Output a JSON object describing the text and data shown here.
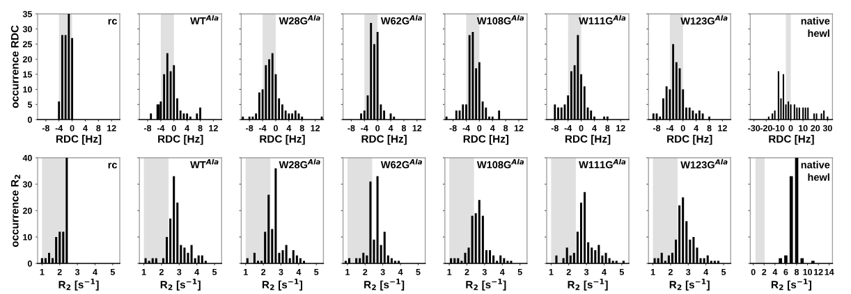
{
  "chart_data": [
    {
      "type": "bar",
      "title": "rc",
      "ylabel": "occurrence RDC",
      "xlabel": "RDC [Hz]",
      "x": [
        -4,
        -3,
        -2,
        -1,
        0
      ],
      "values": [
        6,
        28,
        28,
        35,
        27
      ],
      "color": "#000000",
      "xlim": [
        -10.5,
        14.5
      ],
      "xticks": [
        -8,
        -4,
        0,
        4,
        8,
        12
      ],
      "ylim": [
        0,
        35
      ],
      "yticks": [
        0,
        5,
        10,
        15,
        20,
        25,
        30,
        35
      ],
      "bands": [
        {
          "axis": "x",
          "from": -4,
          "to": 0,
          "color": "#e0e0e0"
        }
      ]
    },
    {
      "type": "bar",
      "title": "WT$^{Ala}$",
      "xlabel": "RDC [Hz]",
      "x": [
        -7,
        -5,
        -4.6,
        -4,
        -3,
        -2,
        -1,
        0,
        1,
        2,
        3,
        4,
        5,
        7,
        8
      ],
      "values": [
        2,
        5,
        5,
        6,
        15,
        22,
        16,
        18,
        7,
        3,
        2,
        2,
        1,
        2,
        4
      ],
      "color": "#000000",
      "xlim": [
        -10.5,
        14.5
      ],
      "xticks": [
        -8,
        -4,
        0,
        4,
        8,
        12
      ],
      "ylim": [
        0,
        35
      ],
      "yticks": [
        {
          "value": 0,
          "label": null
        },
        {
          "value": 5,
          "label": null
        },
        {
          "value": 10,
          "label": null
        },
        {
          "value": 15,
          "label": null
        },
        {
          "value": 20,
          "label": null
        },
        {
          "value": 25,
          "label": null
        },
        {
          "value": 30,
          "label": null
        },
        {
          "value": 35,
          "label": null
        }
      ],
      "tick_labels": "x",
      "bands": [
        {
          "axis": "x",
          "from": -4,
          "to": 0,
          "color": "#e0e0e0"
        }
      ]
    },
    {
      "type": "bar",
      "title": "W28G$^{Ala}$",
      "xlabel": "RDC [Hz]",
      "x": [
        -10,
        -8,
        -7,
        -6,
        -5,
        -4,
        -3,
        -2,
        -1,
        0,
        1,
        2,
        3,
        4,
        5,
        6,
        7,
        8,
        14
      ],
      "values": [
        1,
        1,
        1,
        2,
        9,
        10,
        18,
        20,
        22,
        15,
        7,
        5,
        3,
        2,
        2,
        3,
        2,
        1,
        1
      ],
      "color": "#000000",
      "xlim": [
        -10.5,
        14.5
      ],
      "xticks": [
        -8,
        -4,
        0,
        4,
        8,
        12
      ],
      "ylim": [
        0,
        35
      ],
      "yticks": [
        {
          "value": 0,
          "label": null
        },
        {
          "value": 5,
          "label": null
        },
        {
          "value": 10,
          "label": null
        },
        {
          "value": 15,
          "label": null
        },
        {
          "value": 20,
          "label": null
        },
        {
          "value": 25,
          "label": null
        },
        {
          "value": 30,
          "label": null
        },
        {
          "value": 35,
          "label": null
        }
      ],
      "tick_labels": "x",
      "bands": [
        {
          "axis": "x",
          "from": -4,
          "to": 0,
          "color": "#e0e0e0"
        }
      ]
    },
    {
      "type": "bar",
      "title": "W62G$^{Ala}$",
      "xlabel": "RDC [Hz]",
      "x": [
        -5,
        -4,
        -3,
        -2,
        -1,
        0,
        1,
        2,
        4,
        5
      ],
      "values": [
        2,
        3,
        8,
        32,
        25,
        29,
        5,
        3,
        2,
        1
      ],
      "color": "#000000",
      "xlim": [
        -10.5,
        14.5
      ],
      "xticks": [
        -8,
        -4,
        0,
        4,
        8,
        12
      ],
      "ylim": [
        0,
        35
      ],
      "yticks": [
        {
          "value": 0,
          "label": null
        },
        {
          "value": 5,
          "label": null
        },
        {
          "value": 10,
          "label": null
        },
        {
          "value": 15,
          "label": null
        },
        {
          "value": 20,
          "label": null
        },
        {
          "value": 25,
          "label": null
        },
        {
          "value": 30,
          "label": null
        },
        {
          "value": 35,
          "label": null
        }
      ],
      "tick_labels": "x",
      "bands": [
        {
          "axis": "x",
          "from": -4,
          "to": 0,
          "color": "#e0e0e0"
        }
      ]
    },
    {
      "type": "bar",
      "title": "W108G$^{Ala}$",
      "xlabel": "RDC [Hz]",
      "x": [
        -10,
        -7,
        -6,
        -5,
        -4,
        -3,
        -2,
        -1,
        0,
        1,
        2,
        3,
        4,
        6
      ],
      "values": [
        1,
        3,
        3,
        5,
        5,
        28,
        29,
        17,
        19,
        6,
        4,
        1,
        1,
        3
      ],
      "color": "#000000",
      "xlim": [
        -10.5,
        14.5
      ],
      "xticks": [
        -8,
        -4,
        0,
        4,
        8,
        12
      ],
      "ylim": [
        0,
        35
      ],
      "yticks": [
        {
          "value": 0,
          "label": null
        },
        {
          "value": 5,
          "label": null
        },
        {
          "value": 10,
          "label": null
        },
        {
          "value": 15,
          "label": null
        },
        {
          "value": 20,
          "label": null
        },
        {
          "value": 25,
          "label": null
        },
        {
          "value": 30,
          "label": null
        },
        {
          "value": 35,
          "label": null
        }
      ],
      "tick_labels": "x",
      "bands": [
        {
          "axis": "x",
          "from": -4,
          "to": 0,
          "color": "#e0e0e0"
        }
      ]
    },
    {
      "type": "bar",
      "title": "W111G$^{Ala}$",
      "xlabel": "RDC [Hz]",
      "x": [
        -8,
        -7,
        -6,
        -5,
        -4,
        -3,
        -2,
        -1,
        0,
        1,
        2,
        3,
        4,
        7,
        8
      ],
      "values": [
        5,
        4,
        4,
        5,
        8,
        16,
        18,
        28,
        15,
        11,
        4,
        3,
        1,
        1,
        1
      ],
      "color": "#000000",
      "xlim": [
        -10.5,
        14.5
      ],
      "xticks": [
        -8,
        -4,
        0,
        4,
        8,
        12
      ],
      "ylim": [
        0,
        35
      ],
      "yticks": [
        {
          "value": 0,
          "label": null
        },
        {
          "value": 5,
          "label": null
        },
        {
          "value": 10,
          "label": null
        },
        {
          "value": 15,
          "label": null
        },
        {
          "value": 20,
          "label": null
        },
        {
          "value": 25,
          "label": null
        },
        {
          "value": 30,
          "label": null
        },
        {
          "value": 35,
          "label": null
        }
      ],
      "tick_labels": "x",
      "bands": [
        {
          "axis": "x",
          "from": -4,
          "to": 0,
          "color": "#e0e0e0"
        }
      ]
    },
    {
      "type": "bar",
      "title": "W123G$^{Ala}$",
      "xlabel": "RDC [Hz]",
      "x": [
        -9,
        -8,
        -7,
        -6,
        -5,
        -4,
        -3,
        -2,
        -1,
        0,
        1,
        2,
        3,
        4,
        5,
        6,
        8
      ],
      "values": [
        2,
        2,
        1,
        7,
        11,
        10,
        25,
        19,
        17,
        10,
        4,
        4,
        3,
        2,
        3,
        2,
        1
      ],
      "color": "#000000",
      "xlim": [
        -10.5,
        14.5
      ],
      "xticks": [
        -8,
        -4,
        0,
        4,
        8,
        12
      ],
      "ylim": [
        0,
        35
      ],
      "yticks": [
        {
          "value": 0,
          "label": null
        },
        {
          "value": 5,
          "label": null
        },
        {
          "value": 10,
          "label": null
        },
        {
          "value": 15,
          "label": null
        },
        {
          "value": 20,
          "label": null
        },
        {
          "value": 25,
          "label": null
        },
        {
          "value": 30,
          "label": null
        },
        {
          "value": 35,
          "label": null
        }
      ],
      "tick_labels": "x",
      "bands": [
        {
          "axis": "x",
          "from": -4,
          "to": 0,
          "color": "#e0e0e0"
        }
      ]
    },
    {
      "type": "bar",
      "title": "native\nhewl",
      "xlabel": "RDC [Hz]",
      "x": [
        -18,
        -15,
        -13,
        -10,
        -8,
        -6,
        -4,
        -2,
        0,
        3,
        5,
        7,
        10,
        12,
        14,
        19,
        21,
        25,
        27,
        30
      ],
      "values": [
        1,
        2,
        3,
        16,
        7,
        15,
        5,
        6,
        5,
        5,
        4,
        4,
        4,
        4,
        4,
        2,
        2,
        2,
        3,
        1
      ],
      "color": "#000000",
      "xlim": [
        -33,
        34
      ],
      "xticks": [
        -30,
        -20,
        -10,
        0,
        10,
        20,
        30
      ],
      "ylim": [
        0,
        35
      ],
      "yticks": [
        {
          "value": 0,
          "label": null
        },
        {
          "value": 5,
          "label": null
        },
        {
          "value": 10,
          "label": null
        },
        {
          "value": 15,
          "label": null
        },
        {
          "value": 20,
          "label": null
        },
        {
          "value": 25,
          "label": null
        },
        {
          "value": 30,
          "label": null
        },
        {
          "value": 35,
          "label": null
        }
      ],
      "tick_labels": "x",
      "bands": [
        {
          "axis": "x",
          "from": -4,
          "to": 0,
          "color": "#e0e0e0"
        }
      ]
    },
    {
      "type": "bar",
      "title": "rc",
      "ylabel": "occurrence R$_{2}$",
      "xlabel": "R$_{2}$ [s$^{−1}$]",
      "x": [
        1,
        1.2,
        1.4,
        1.6,
        1.8,
        2,
        2.2,
        2.4
      ],
      "values": [
        2,
        2,
        4,
        2,
        10,
        12,
        12,
        40
      ],
      "color": "#000000",
      "xlim": [
        0.75,
        5.4
      ],
      "xticks": [
        1,
        2,
        3,
        4,
        5
      ],
      "ylim": [
        0,
        40
      ],
      "yticks": [
        0,
        10,
        20,
        30,
        40
      ],
      "bands": [
        {
          "axis": "x",
          "from": 1,
          "to": 2.4,
          "color": "#e0e0e0"
        }
      ]
    },
    {
      "type": "bar",
      "title": "WT$^{Ala}$",
      "xlabel": "R$_{2}$ [s$^{−1}$]",
      "x": [
        1.1,
        1.3,
        1.5,
        1.7,
        2.1,
        2.3,
        2.5,
        2.7,
        2.9,
        3.1,
        3.3,
        3.5,
        3.7,
        3.9,
        4.1,
        4.3,
        4.5
      ],
      "values": [
        2,
        1,
        2,
        2,
        2,
        10,
        17,
        33,
        23,
        7,
        6,
        4,
        7,
        2,
        3,
        3,
        1
      ],
      "color": "#000000",
      "xlim": [
        0.75,
        5.4
      ],
      "xticks": [
        1,
        2,
        3,
        4,
        5
      ],
      "ylim": [
        0,
        40
      ],
      "yticks": [
        {
          "value": 0,
          "label": null
        },
        {
          "value": 10,
          "label": null
        },
        {
          "value": 20,
          "label": null
        },
        {
          "value": 30,
          "label": null
        },
        {
          "value": 40,
          "label": null
        }
      ],
      "tick_labels": "x",
      "bands": [
        {
          "axis": "x",
          "from": 1,
          "to": 2.4,
          "color": "#e0e0e0"
        }
      ]
    },
    {
      "type": "bar",
      "title": "W28G$^{Ala}$",
      "xlabel": "R$_{2}$ [s$^{−1}$]",
      "x": [
        1.1,
        1.5,
        1.7,
        1.9,
        2.1,
        2.3,
        2.5,
        2.7,
        2.9,
        3.1,
        3.3,
        3.5,
        3.7,
        3.9,
        4.1,
        4.3
      ],
      "values": [
        2,
        4,
        1,
        1,
        12,
        26,
        13,
        36,
        4,
        5,
        7,
        2,
        5,
        3,
        2,
        1
      ],
      "color": "#000000",
      "xlim": [
        0.75,
        5.4
      ],
      "xticks": [
        1,
        2,
        3,
        4,
        5
      ],
      "ylim": [
        0,
        40
      ],
      "yticks": [
        {
          "value": 0,
          "label": null
        },
        {
          "value": 10,
          "label": null
        },
        {
          "value": 20,
          "label": null
        },
        {
          "value": 30,
          "label": null
        },
        {
          "value": 40,
          "label": null
        }
      ],
      "tick_labels": "x",
      "bands": [
        {
          "axis": "x",
          "from": 1,
          "to": 2.4,
          "color": "#e0e0e0"
        }
      ]
    },
    {
      "type": "bar",
      "title": "W62G$^{Ala}$",
      "xlabel": "R$_{2}$ [s$^{−1}$]",
      "x": [
        0.9,
        1.1,
        1.5,
        1.7,
        1.9,
        2.1,
        2.3,
        2.5,
        2.7,
        2.9,
        3.1,
        3.3,
        3.5,
        3.7,
        3.9
      ],
      "values": [
        1,
        2,
        2,
        2,
        4,
        3,
        31,
        9,
        33,
        7,
        12,
        3,
        2,
        1,
        1
      ],
      "color": "#000000",
      "xlim": [
        0.75,
        5.4
      ],
      "xticks": [
        1,
        2,
        3,
        4,
        5
      ],
      "ylim": [
        0,
        40
      ],
      "yticks": [
        {
          "value": 0,
          "label": null
        },
        {
          "value": 10,
          "label": null
        },
        {
          "value": 20,
          "label": null
        },
        {
          "value": 30,
          "label": null
        },
        {
          "value": 40,
          "label": null
        }
      ],
      "tick_labels": "x",
      "bands": [
        {
          "axis": "x",
          "from": 1,
          "to": 2.4,
          "color": "#e0e0e0"
        }
      ]
    },
    {
      "type": "bar",
      "title": "W108G$^{Ala}$",
      "xlabel": "R$_{2}$ [s$^{−1}$]",
      "x": [
        1.1,
        1.3,
        1.5,
        1.7,
        1.9,
        2.1,
        2.3,
        2.5,
        2.7,
        2.9,
        3.1,
        3.3,
        3.5,
        3.7,
        3.9,
        4.1,
        4.3,
        4.5
      ],
      "values": [
        2,
        2,
        2,
        1,
        4,
        6,
        18,
        19,
        24,
        18,
        5,
        5,
        3,
        1,
        3,
        2,
        1,
        1
      ],
      "color": "#000000",
      "xlim": [
        0.75,
        5.4
      ],
      "xticks": [
        1,
        2,
        3,
        4,
        5
      ],
      "ylim": [
        0,
        40
      ],
      "yticks": [
        {
          "value": 0,
          "label": null
        },
        {
          "value": 10,
          "label": null
        },
        {
          "value": 20,
          "label": null
        },
        {
          "value": 30,
          "label": null
        },
        {
          "value": 40,
          "label": null
        }
      ],
      "tick_labels": "x",
      "bands": [
        {
          "axis": "x",
          "from": 1,
          "to": 2.4,
          "color": "#e0e0e0"
        }
      ]
    },
    {
      "type": "bar",
      "title": "W111G$^{Ala}$",
      "xlabel": "R$_{2}$ [s$^{−1}$]",
      "x": [
        1.3,
        1.7,
        1.9,
        2.1,
        2.3,
        2.5,
        2.7,
        2.9,
        3.1,
        3.3,
        3.5,
        3.7,
        3.9,
        4.1,
        4.3,
        4.5,
        4.7,
        5.1
      ],
      "values": [
        3,
        2,
        6,
        3,
        4,
        12,
        23,
        27,
        8,
        6,
        5,
        7,
        3,
        4,
        2,
        1,
        1,
        1
      ],
      "color": "#000000",
      "xlim": [
        0.75,
        5.4
      ],
      "xticks": [
        1,
        2,
        3,
        4,
        5
      ],
      "ylim": [
        0,
        40
      ],
      "yticks": [
        {
          "value": 0,
          "label": null
        },
        {
          "value": 10,
          "label": null
        },
        {
          "value": 20,
          "label": null
        },
        {
          "value": 30,
          "label": null
        },
        {
          "value": 40,
          "label": null
        }
      ],
      "tick_labels": "x",
      "bands": [
        {
          "axis": "x",
          "from": 1,
          "to": 2.4,
          "color": "#e0e0e0"
        }
      ]
    },
    {
      "type": "bar",
      "title": "W123G$^{Ala}$",
      "xlabel": "R$_{2}$ [s$^{−1}$]",
      "x": [
        1.1,
        1.3,
        1.5,
        1.7,
        1.9,
        2.1,
        2.3,
        2.5,
        2.7,
        2.9,
        3.1,
        3.3,
        3.5,
        3.7,
        3.9,
        4.1,
        4.3,
        4.5,
        4.7
      ],
      "values": [
        2,
        2,
        4,
        1,
        3,
        4,
        9,
        22,
        25,
        16,
        9,
        10,
        6,
        2,
        2,
        3,
        1,
        1,
        1
      ],
      "color": "#000000",
      "xlim": [
        0.75,
        5.4
      ],
      "xticks": [
        1,
        2,
        3,
        4,
        5
      ],
      "ylim": [
        0,
        40
      ],
      "yticks": [
        {
          "value": 0,
          "label": null
        },
        {
          "value": 10,
          "label": null
        },
        {
          "value": 20,
          "label": null
        },
        {
          "value": 30,
          "label": null
        },
        {
          "value": 40,
          "label": null
        }
      ],
      "tick_labels": "x",
      "bands": [
        {
          "axis": "x",
          "from": 1,
          "to": 2.4,
          "color": "#e0e0e0"
        }
      ]
    },
    {
      "type": "bar",
      "title": "native\nhewl",
      "xlabel": "R$_{2}$ [s$^{−1}$]",
      "x": [
        5,
        6,
        7,
        8,
        9,
        11
      ],
      "values": [
        2,
        3,
        33,
        40,
        2,
        1
      ],
      "color": "#000000",
      "xlim": [
        -0.55,
        14.6
      ],
      "xticks": [
        0,
        2,
        4,
        6,
        8,
        10,
        12,
        14
      ],
      "ylim": [
        0,
        40
      ],
      "yticks": [
        {
          "value": 0,
          "label": null
        },
        {
          "value": 10,
          "label": null
        },
        {
          "value": 20,
          "label": null
        },
        {
          "value": 30,
          "label": null
        },
        {
          "value": 40,
          "label": null
        }
      ],
      "tick_labels": "x",
      "bands": [
        {
          "axis": "x",
          "from": 0.4,
          "to": 2.1,
          "color": "#e0e0e0"
        }
      ]
    }
  ]
}
